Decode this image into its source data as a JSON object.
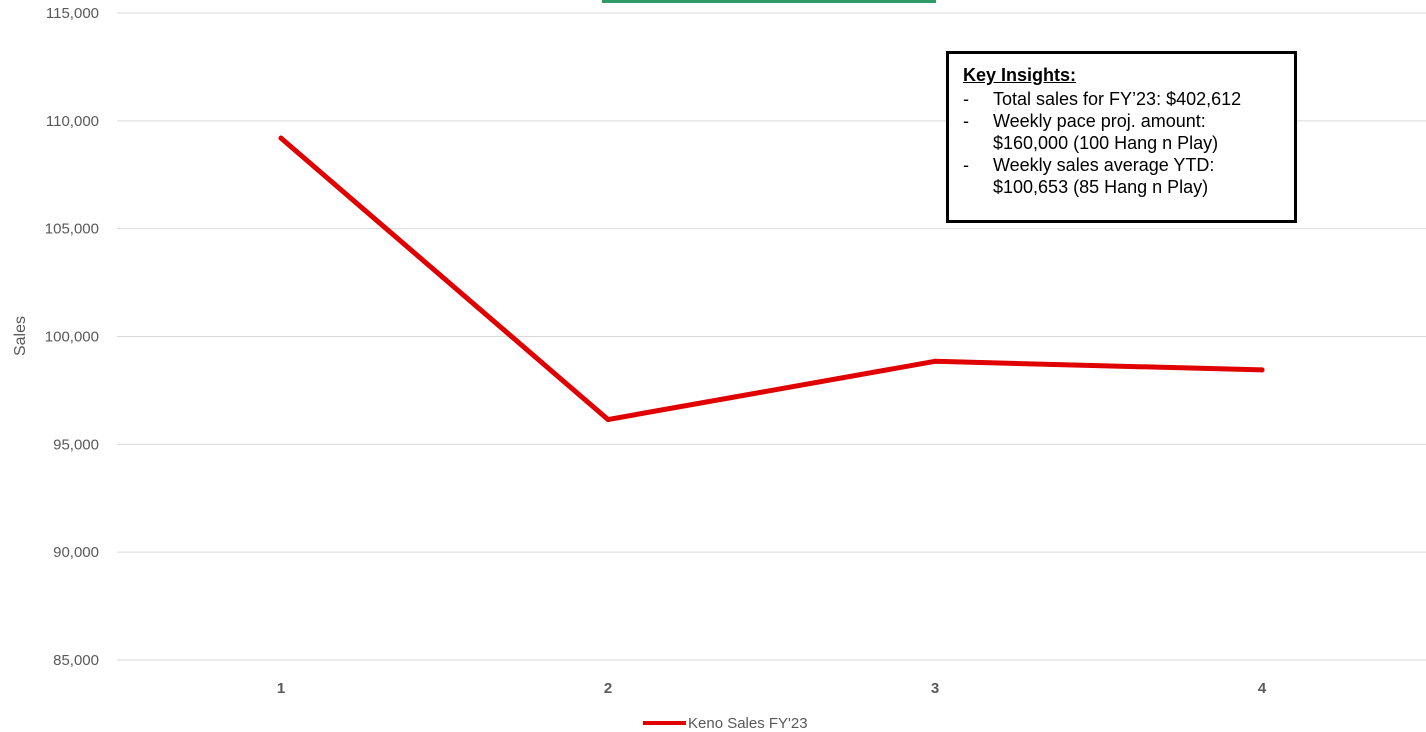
{
  "colors": {
    "series": "#e00000",
    "grid": "#d9d9d9",
    "top_accent": "#2f9a67"
  },
  "chart_data": {
    "type": "line",
    "title": "",
    "xlabel": "",
    "ylabel": "Sales",
    "categories": [
      "1",
      "2",
      "3",
      "4"
    ],
    "series": [
      {
        "name": "Keno Sales FY'23",
        "values": [
          109200,
          96150,
          98850,
          98450
        ]
      }
    ],
    "ylim": [
      85000,
      115000
    ],
    "yticks": [
      {
        "value": 85000,
        "label": "85,000"
      },
      {
        "value": 90000,
        "label": "90,000"
      },
      {
        "value": 95000,
        "label": "95,000"
      },
      {
        "value": 100000,
        "label": "100,000"
      },
      {
        "value": 105000,
        "label": "105,000"
      },
      {
        "value": 110000,
        "label": "110,000"
      },
      {
        "value": 115000,
        "label": "115,000"
      }
    ],
    "grid": true,
    "legend_position": "bottom"
  },
  "insights": {
    "title": "Key Insights:",
    "items": [
      "Total sales for FY’23: $402,612",
      "Weekly pace proj. amount:\n$160,000 (100 Hang n Play)",
      "Weekly sales average YTD:\n$100,653 (85 Hang n Play)"
    ]
  }
}
